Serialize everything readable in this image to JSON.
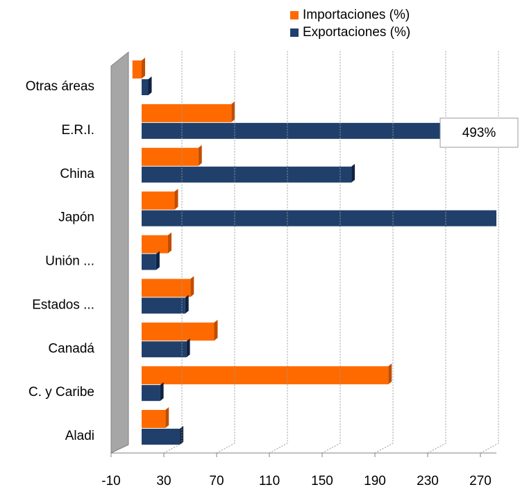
{
  "chart_data": {
    "type": "bar",
    "orientation": "horizontal",
    "categories": [
      "Aladi",
      "C. y Caribe",
      "Canadá",
      "Estados ...",
      "Unión ...",
      "Japón",
      "China",
      "E.R.I.",
      "Otras áreas"
    ],
    "series": [
      {
        "name": "Importaciones (%)",
        "color": "#ff6a00",
        "values": [
          18,
          187,
          55,
          37,
          20,
          25,
          43,
          68,
          -7
        ]
      },
      {
        "name": "Exportaciones (%)",
        "color": "#20406b",
        "values": [
          29,
          14,
          34,
          33,
          11,
          270,
          159,
          493,
          5
        ],
        "value_labels": [
          null,
          null,
          null,
          null,
          null,
          null,
          null,
          "493%",
          null
        ]
      }
    ],
    "xlim": [
      -10,
      270
    ],
    "xticks": [
      -10,
      30,
      70,
      110,
      150,
      190,
      230,
      270
    ],
    "grid": true,
    "legend": "top"
  }
}
